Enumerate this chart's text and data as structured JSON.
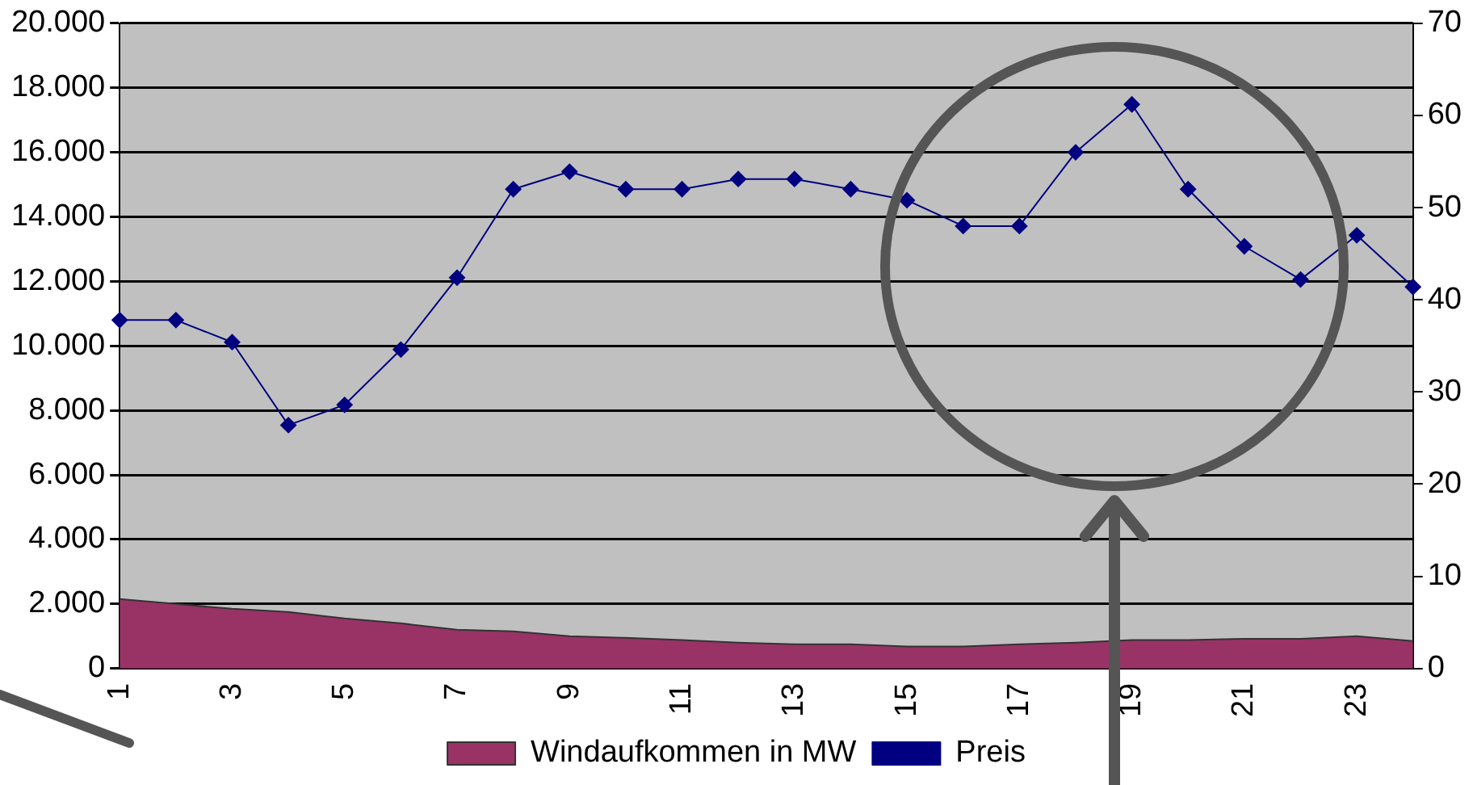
{
  "chart_data": {
    "type": "line",
    "categories": [
      "1",
      null,
      "3",
      null,
      "5",
      null,
      "7",
      null,
      "9",
      null,
      "11",
      null,
      "13",
      null,
      "15",
      null,
      "17",
      null,
      "19",
      null,
      "21",
      null,
      "23",
      null
    ],
    "series": [
      {
        "name": "Windaufkommen in MW",
        "type": "area",
        "color": "#993366",
        "values": [
          2150,
          2000,
          1850,
          1750,
          1550,
          1400,
          1200,
          1150,
          1000,
          950,
          880,
          800,
          750,
          750,
          680,
          680,
          750,
          800,
          880,
          880,
          920,
          920,
          1000,
          850
        ]
      },
      {
        "name": "Preis",
        "type": "line",
        "axis": "y2",
        "color": "#000080",
        "marker": "diamond",
        "values": [
          37.8,
          37.8,
          35.4,
          26.4,
          28.6,
          34.6,
          42.4,
          52,
          53.9,
          52,
          52,
          53.1,
          53.1,
          52,
          50.8,
          48,
          48,
          56,
          61.2,
          52,
          45.8,
          42.2,
          47,
          41.4
        ]
      }
    ],
    "ylim": [
      0,
      20000
    ],
    "yticks": [
      {
        "value": 0,
        "label": "0"
      },
      {
        "value": 2000,
        "label": "2.000"
      },
      {
        "value": 4000,
        "label": "4.000"
      },
      {
        "value": 6000,
        "label": "6.000"
      },
      {
        "value": 8000,
        "label": "8.000"
      },
      {
        "value": 10000,
        "label": "10.000"
      },
      {
        "value": 12000,
        "label": "12.000"
      },
      {
        "value": 14000,
        "label": "14.000"
      },
      {
        "value": 16000,
        "label": "16.000"
      },
      {
        "value": 18000,
        "label": "18.000"
      },
      {
        "value": 20000,
        "label": "20.000"
      }
    ],
    "y2lim": [
      0,
      70
    ],
    "y2ticks": [
      0,
      10,
      20,
      30,
      40,
      50,
      60,
      70
    ],
    "grid": "y",
    "legend": "bottom"
  }
}
